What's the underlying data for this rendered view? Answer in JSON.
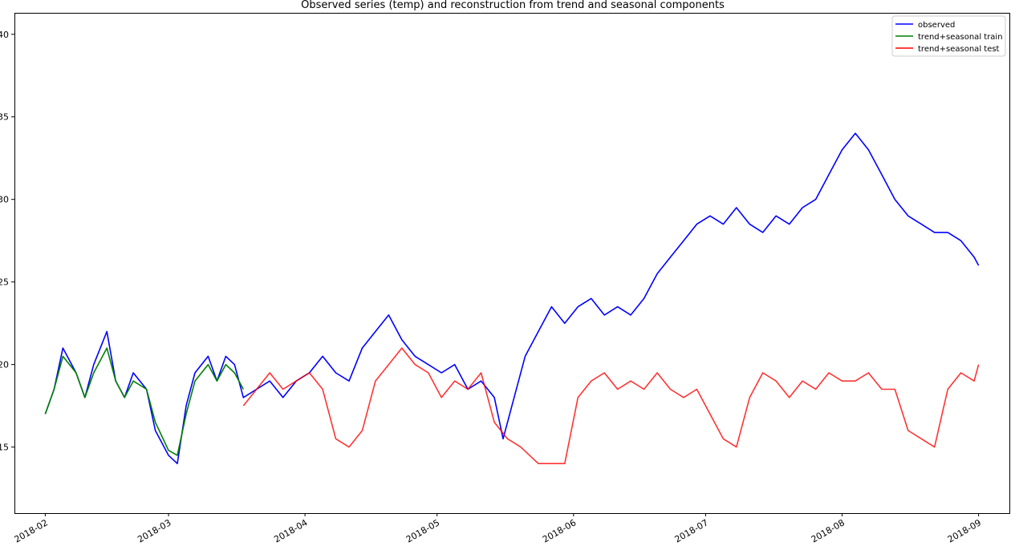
{
  "chart_data": {
    "type": "line",
    "title": "Observed series (temp) and reconstruction from trend and seasonal components",
    "xlabel": "",
    "ylabel": "",
    "xlim": [
      "2018-01-25",
      "2018-09-08"
    ],
    "ylim": [
      11,
      41.3
    ],
    "grid": false,
    "legend_position": "top-right",
    "x_ticks": [
      "2018-02",
      "2018-03",
      "2018-04",
      "2018-05",
      "2018-06",
      "2018-07",
      "2018-08",
      "2018-09"
    ],
    "y_ticks": [
      15,
      20,
      25,
      30,
      35,
      40
    ],
    "series": [
      {
        "name": "observed",
        "color": "#0000ff",
        "x": [
          "2018-02-01",
          "2018-02-03",
          "2018-02-05",
          "2018-02-08",
          "2018-02-10",
          "2018-02-12",
          "2018-02-15",
          "2018-02-17",
          "2018-02-19",
          "2018-02-21",
          "2018-02-24",
          "2018-02-26",
          "2018-03-01",
          "2018-03-03",
          "2018-03-05",
          "2018-03-07",
          "2018-03-10",
          "2018-03-12",
          "2018-03-14",
          "2018-03-16",
          "2018-03-18",
          "2018-03-21",
          "2018-03-24",
          "2018-03-27",
          "2018-03-30",
          "2018-04-02",
          "2018-04-05",
          "2018-04-08",
          "2018-04-11",
          "2018-04-14",
          "2018-04-17",
          "2018-04-20",
          "2018-04-23",
          "2018-04-26",
          "2018-04-29",
          "2018-05-02",
          "2018-05-05",
          "2018-05-08",
          "2018-05-11",
          "2018-05-14",
          "2018-05-16",
          "2018-05-18",
          "2018-05-21",
          "2018-05-24",
          "2018-05-27",
          "2018-05-30",
          "2018-06-02",
          "2018-06-05",
          "2018-06-08",
          "2018-06-11",
          "2018-06-14",
          "2018-06-17",
          "2018-06-20",
          "2018-06-23",
          "2018-06-26",
          "2018-06-29",
          "2018-07-02",
          "2018-07-05",
          "2018-07-08",
          "2018-07-11",
          "2018-07-14",
          "2018-07-17",
          "2018-07-20",
          "2018-07-23",
          "2018-07-26",
          "2018-07-29",
          "2018-08-01",
          "2018-08-04",
          "2018-08-07",
          "2018-08-10",
          "2018-08-13",
          "2018-08-16",
          "2018-08-19",
          "2018-08-22",
          "2018-08-25",
          "2018-08-28",
          "2018-08-31",
          "2018-09-01"
        ],
        "y": [
          17.0,
          18.5,
          21.0,
          19.5,
          18.0,
          20.0,
          22.0,
          19.0,
          18.0,
          19.5,
          18.5,
          16.0,
          14.5,
          14.0,
          17.5,
          19.5,
          20.5,
          19.0,
          20.5,
          20.0,
          18.0,
          18.5,
          19.0,
          18.0,
          19.0,
          19.5,
          20.5,
          19.5,
          19.0,
          21.0,
          22.0,
          23.0,
          21.5,
          20.5,
          20.0,
          19.5,
          20.0,
          18.5,
          19.0,
          18.0,
          15.5,
          17.5,
          20.5,
          22.0,
          23.5,
          22.5,
          23.5,
          24.0,
          23.0,
          23.5,
          23.0,
          24.0,
          25.5,
          26.5,
          27.5,
          28.5,
          29.0,
          28.5,
          29.5,
          28.5,
          28.0,
          29.0,
          28.5,
          29.5,
          30.0,
          31.5,
          33.0,
          34.0,
          33.0,
          31.5,
          30.0,
          29.0,
          28.5,
          28.0,
          28.0,
          27.5,
          26.5,
          26.0
        ]
      },
      {
        "name": "trend+seasonal train",
        "color": "#008000",
        "x": [
          "2018-02-01",
          "2018-02-03",
          "2018-02-05",
          "2018-02-08",
          "2018-02-10",
          "2018-02-12",
          "2018-02-15",
          "2018-02-17",
          "2018-02-19",
          "2018-02-21",
          "2018-02-24",
          "2018-02-26",
          "2018-03-01",
          "2018-03-03",
          "2018-03-05",
          "2018-03-07",
          "2018-03-10",
          "2018-03-12",
          "2018-03-14",
          "2018-03-16",
          "2018-03-18"
        ],
        "y": [
          17.0,
          18.5,
          20.5,
          19.5,
          18.0,
          19.5,
          21.0,
          19.0,
          18.0,
          19.0,
          18.5,
          16.5,
          14.8,
          14.5,
          17.0,
          19.0,
          20.0,
          19.0,
          20.0,
          19.5,
          18.5
        ]
      },
      {
        "name": "trend+seasonal test",
        "color": "#ff0000",
        "x": [
          "2018-03-18",
          "2018-03-21",
          "2018-03-24",
          "2018-03-27",
          "2018-03-30",
          "2018-04-02",
          "2018-04-05",
          "2018-04-08",
          "2018-04-11",
          "2018-04-14",
          "2018-04-17",
          "2018-04-20",
          "2018-04-23",
          "2018-04-26",
          "2018-04-29",
          "2018-05-02",
          "2018-05-05",
          "2018-05-08",
          "2018-05-11",
          "2018-05-14",
          "2018-05-17",
          "2018-05-20",
          "2018-05-24",
          "2018-05-27",
          "2018-05-30",
          "2018-06-02",
          "2018-06-05",
          "2018-06-08",
          "2018-06-11",
          "2018-06-14",
          "2018-06-17",
          "2018-06-20",
          "2018-06-23",
          "2018-06-26",
          "2018-06-29",
          "2018-07-02",
          "2018-07-05",
          "2018-07-08",
          "2018-07-11",
          "2018-07-14",
          "2018-07-17",
          "2018-07-20",
          "2018-07-23",
          "2018-07-26",
          "2018-07-29",
          "2018-08-01",
          "2018-08-04",
          "2018-08-07",
          "2018-08-10",
          "2018-08-13",
          "2018-08-16",
          "2018-08-19",
          "2018-08-22",
          "2018-08-25",
          "2018-08-28",
          "2018-08-31",
          "2018-09-01"
        ],
        "y": [
          17.5,
          18.5,
          19.5,
          18.5,
          19.0,
          19.5,
          18.5,
          15.5,
          15.0,
          16.0,
          19.0,
          20.0,
          21.0,
          20.0,
          19.5,
          18.0,
          19.0,
          18.5,
          19.5,
          16.5,
          15.5,
          15.0,
          14.0,
          14.0,
          14.0,
          18.0,
          19.0,
          19.5,
          18.5,
          19.0,
          18.5,
          19.5,
          18.5,
          18.0,
          18.5,
          17.0,
          15.5,
          15.0,
          18.0,
          19.5,
          19.0,
          18.0,
          19.0,
          18.5,
          19.5,
          19.0,
          19.0,
          19.5,
          18.5,
          18.5,
          16.0,
          15.5,
          15.0,
          18.5,
          19.5,
          19.0,
          20.0
        ]
      }
    ]
  }
}
